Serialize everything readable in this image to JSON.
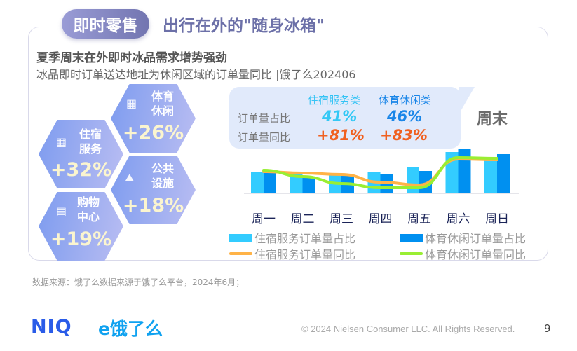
{
  "header": {
    "pill": "即时零售",
    "title": "出行在外的\"随身冰箱\""
  },
  "subtitle": "夏季周末在外即时冰品需求增势强劲",
  "description": "冰品即时订单送达地址为休闲区域的订单量同比 |饿了么202406",
  "hexagons": [
    {
      "label1": "体育",
      "label2": "休闲",
      "value": "+26%",
      "icon": "stadium-icon"
    },
    {
      "label1": "住宿",
      "label2": "服务",
      "value": "+32%",
      "icon": "hotel-icon"
    },
    {
      "label1": "公共",
      "label2": "设施",
      "value": "+18%",
      "icon": "mountain-park-icon"
    },
    {
      "label1": "购物",
      "label2": "中心",
      "value": "+19%",
      "icon": "shop-icon"
    }
  ],
  "callout": {
    "col1": "住宿服务类",
    "col2": "体育休闲类",
    "row1": "订单量占比",
    "row2": "订单量同比",
    "share1": "41%",
    "share2": "46%",
    "yoy1": "+81%",
    "yoy2": "+83%",
    "tag": "周末"
  },
  "chart_data": {
    "type": "bar",
    "categories": [
      "周一",
      "周二",
      "周三",
      "周四",
      "周五",
      "周六",
      "周日"
    ],
    "series": [
      {
        "name": "住宿服务订单量占比",
        "kind": "bar",
        "color": "#33ccff",
        "values": [
          29,
          28,
          28,
          29,
          36,
          58,
          48
        ]
      },
      {
        "name": "体育休闲订单量占比",
        "kind": "bar",
        "color": "#0090f0",
        "values": [
          28,
          23,
          24,
          27,
          31,
          63,
          55
        ]
      },
      {
        "name": "住宿服务订单量同比",
        "kind": "line",
        "color": "#ffb347",
        "values": [
          30,
          28,
          26,
          15,
          11,
          48,
          47
        ]
      },
      {
        "name": "体育休闲订单量同比",
        "kind": "line",
        "color": "#99ee33",
        "values": [
          32,
          23,
          13,
          7,
          7,
          50,
          49
        ]
      }
    ],
    "note": "relative values estimated, no value axis shown"
  },
  "source": "数据来源：饿了么数据来源于饿了么平台，2024年6月；",
  "footer": {
    "logo1": "NIQ",
    "logo2": "e饿了么",
    "copyright": "© 2024 Nielsen Consumer LLC. All Rights Reserved.",
    "page": "9"
  }
}
